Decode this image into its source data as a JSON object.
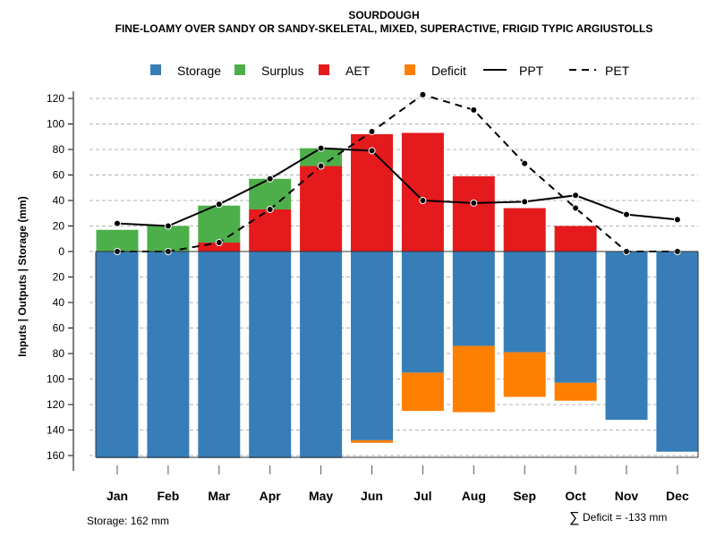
{
  "chart_data": {
    "type": "bar",
    "title": "SOURDOUGH",
    "subtitle": "FINE-LOAMY OVER SANDY OR SANDY-SKELETAL, MIXED, SUPERACTIVE, FRIGID TYPIC ARGIUSTOLLS",
    "ylabel": "Inputs | Outputs | Storage    (mm)",
    "xlabel": "",
    "ylim": [
      -162,
      125
    ],
    "yticks": [
      120,
      100,
      80,
      60,
      40,
      20,
      0,
      -20,
      -40,
      -60,
      -80,
      -100,
      -120,
      -140,
      -160
    ],
    "ytick_labels": [
      "120",
      "100",
      "80",
      "60",
      "40",
      "20",
      "0",
      "20",
      "40",
      "60",
      "80",
      "100",
      "120",
      "140",
      "160"
    ],
    "grid": true,
    "legend_position": "top",
    "categories": [
      "Jan",
      "Feb",
      "Mar",
      "Apr",
      "May",
      "Jun",
      "Jul",
      "Aug",
      "Sep",
      "Oct",
      "Nov",
      "Dec"
    ],
    "series": [
      {
        "name": "Storage",
        "type": "bar",
        "color": "#377EB8",
        "values": [
          -162,
          -162,
          -162,
          -162,
          -162,
          -148,
          -95,
          -74,
          -79,
          -103,
          -132,
          -157
        ]
      },
      {
        "name": "Surplus",
        "type": "bar",
        "color": "#4DAF4A",
        "values": [
          17,
          20,
          29,
          24,
          14,
          0,
          0,
          0,
          0,
          0,
          0,
          0
        ]
      },
      {
        "name": "AET",
        "type": "bar",
        "color": "#E41A1C",
        "values": [
          0,
          0,
          7,
          33,
          67,
          92,
          93,
          59,
          34,
          20,
          0,
          0
        ]
      },
      {
        "name": "Deficit",
        "type": "bar",
        "color": "#FF7F00",
        "values": [
          0,
          0,
          0,
          0,
          0,
          -2,
          -30,
          -52,
          -35,
          -14,
          0,
          0
        ]
      },
      {
        "name": "PPT",
        "type": "line",
        "color": "#000000",
        "dash": "solid",
        "values": [
          22,
          20,
          37,
          57,
          81,
          79,
          40,
          38,
          39,
          44,
          29,
          25
        ]
      },
      {
        "name": "PET",
        "type": "line",
        "color": "#000000",
        "dash": "dashed",
        "values": [
          0,
          0,
          7,
          33,
          67,
          94,
          123,
          111,
          69,
          34,
          0,
          0
        ]
      }
    ],
    "annotations": {
      "storage": "Storage: 162 mm",
      "deficit_symbol": "∑",
      "deficit": "Deficit = -133 mm"
    }
  }
}
